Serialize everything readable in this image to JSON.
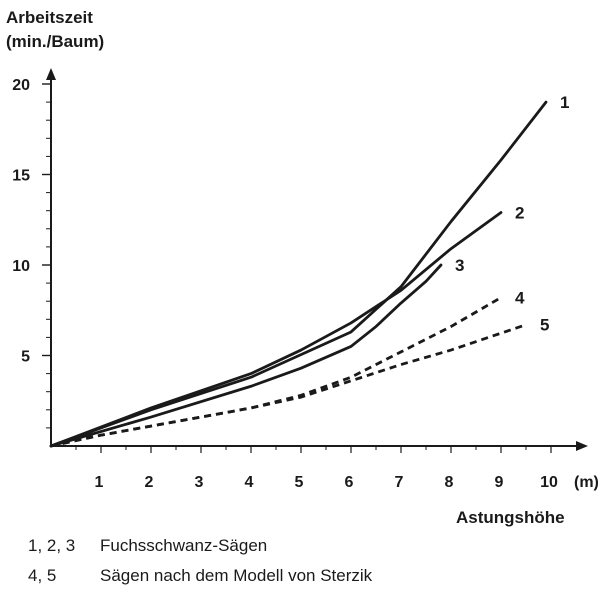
{
  "chart_data": {
    "type": "line",
    "ylabel_line1": "Arbeitszeit",
    "ylabel_line2": "(min./Baum)",
    "xlabel": "Astungshöhe",
    "x_unit": "(m)",
    "xlim": [
      0,
      10
    ],
    "ylim": [
      0,
      20
    ],
    "xticks": [
      "1",
      "2",
      "3",
      "4",
      "5",
      "6",
      "7",
      "8",
      "9",
      "10"
    ],
    "yticks": [
      "5",
      "10",
      "15",
      "20"
    ],
    "grid": false,
    "series": [
      {
        "name": "1",
        "style": "solid",
        "x": [
          0,
          2,
          4,
          6,
          7,
          8,
          9,
          9.9
        ],
        "y": [
          0,
          2,
          3.8,
          6.3,
          8.8,
          12.4,
          15.8,
          19
        ]
      },
      {
        "name": "2",
        "style": "solid",
        "x": [
          0,
          2,
          4,
          5,
          6,
          7,
          8,
          9
        ],
        "y": [
          0,
          2.1,
          4,
          5.3,
          6.8,
          8.6,
          10.9,
          12.9
        ]
      },
      {
        "name": "3",
        "style": "solid",
        "x": [
          0,
          2,
          4,
          5,
          6,
          6.5,
          7,
          7.5,
          7.8
        ],
        "y": [
          0,
          1.6,
          3.3,
          4.3,
          5.5,
          6.6,
          7.9,
          9.1,
          10
        ]
      },
      {
        "name": "4",
        "style": "dashed",
        "x": [
          0,
          1,
          2,
          3,
          4,
          5,
          6,
          7,
          8,
          9
        ],
        "y": [
          0,
          0.6,
          1.1,
          1.6,
          2.1,
          2.8,
          3.8,
          5.2,
          6.6,
          8.2
        ]
      },
      {
        "name": "5",
        "style": "dashed",
        "x": [
          0,
          1,
          2,
          3,
          4,
          5,
          6,
          7,
          8,
          9.5
        ],
        "y": [
          0,
          0.6,
          1.1,
          1.6,
          2.1,
          2.7,
          3.6,
          4.5,
          5.3,
          6.7
        ]
      }
    ]
  },
  "caption": {
    "line1_key": "1, 2, 3",
    "line1_text": "Fuchsschwanz-Sägen",
    "line2_key": "4, 5",
    "line2_text": "Sägen nach dem Modell von Sterzik"
  },
  "colors": {
    "ink": "#1a1a1a",
    "background": "#ffffff"
  }
}
